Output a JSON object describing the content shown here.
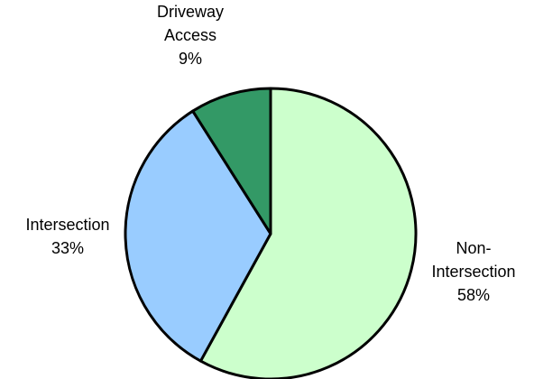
{
  "chart_data": {
    "type": "pie",
    "title": "",
    "slices": [
      {
        "label_lines": [
          "Non-",
          "Intersection"
        ],
        "percent_text": "58%",
        "value": 58,
        "color": "#ccffcc"
      },
      {
        "label_lines": [
          "Intersection"
        ],
        "percent_text": "33%",
        "value": 33,
        "color": "#99ccff"
      },
      {
        "label_lines": [
          "Driveway",
          "Access"
        ],
        "percent_text": "9%",
        "value": 9,
        "color": "#339966"
      }
    ],
    "stroke_color": "#000000",
    "start_angle_deg": 0,
    "direction": "clockwise"
  }
}
